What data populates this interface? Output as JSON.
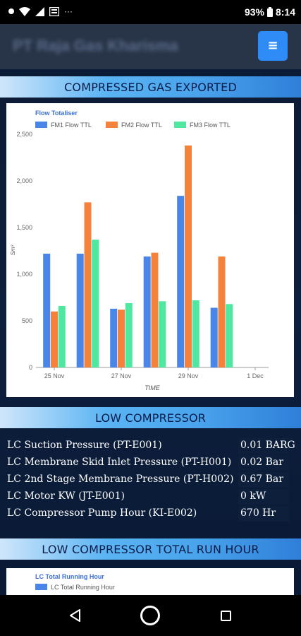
{
  "status_bar": {
    "battery": "93%",
    "time": "8:14",
    "more": "···"
  },
  "header": {
    "app_title": "PT Raja Gas Kharisma",
    "menu_icon": "menu-icon"
  },
  "sections": {
    "compressed_gas": "COMPRESSED GAS EXPORTED",
    "low_compressor": "LOW COMPRESSOR",
    "lc_total_run_hour": "LOW COMPRESSOR TOTAL RUN HOUR"
  },
  "chart_data": [
    {
      "type": "bar",
      "title": "Flow Totaliser",
      "xlabel": "TIME",
      "ylabel": "Sm³",
      "ylim": [
        0,
        2500
      ],
      "yticks": [
        "0",
        "500",
        "1,000",
        "1,500",
        "2,000",
        "2,500"
      ],
      "xticks": [
        "25 Nov",
        "27 Nov",
        "29 Nov",
        "1 Dec"
      ],
      "legend_position": "top",
      "grid": false,
      "categories": [
        "25 Nov",
        "26 Nov",
        "27 Nov",
        "28 Nov",
        "29 Nov",
        "30 Nov"
      ],
      "series": [
        {
          "name": "FM1 Flow TTL",
          "color": "#4a86e8",
          "values": [
            1220,
            1220,
            630,
            1190,
            1840,
            640
          ]
        },
        {
          "name": "FM2 Flow TTL",
          "color": "#f4823a",
          "values": [
            600,
            1770,
            620,
            1230,
            2380,
            1190
          ]
        },
        {
          "name": "FM3 Flow TTL",
          "color": "#4fe8a0",
          "values": [
            660,
            1370,
            690,
            710,
            720,
            680
          ]
        }
      ]
    },
    {
      "type": "bar",
      "title": "LC Total Running Hour",
      "legend_position": "top",
      "series": [
        {
          "name": "LC Total Running Hour",
          "color": "#4a86e8",
          "values": []
        }
      ]
    }
  ],
  "low_compressor": {
    "rows": [
      {
        "label": "LC Suction Pressure (PT-E001)",
        "value": "0.01 BARG"
      },
      {
        "label": "LC Membrane Skid Inlet Pressure (PT-H001)",
        "value": "0.02 Bar"
      },
      {
        "label": "LC 2nd Stage Membrane Pressure (PT-H002)",
        "value": "0.67 Bar"
      },
      {
        "label": "LC Motor KW (JT-E001)",
        "value": "0 kW"
      },
      {
        "label": "LC Compressor Pump Hour (KI-E002)",
        "value": "670 Hr"
      }
    ]
  },
  "colors": {
    "accent": "#2f8cf6",
    "header_bg": "#283447",
    "page_bg": "#0d1f3e"
  }
}
